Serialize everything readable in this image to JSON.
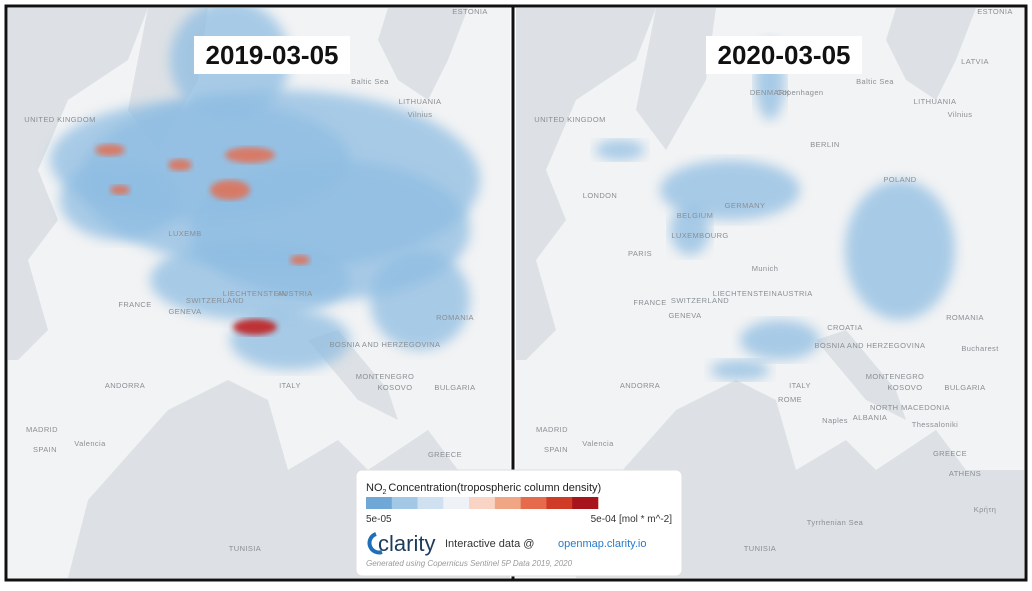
{
  "panels": [
    {
      "date": "2019-03-05",
      "labels": [
        "ESTONIA",
        "UNITED KINGDOM",
        "Baltic Sea",
        "LITHUANIA",
        "Vilnius",
        "FRANCE",
        "LIECHTENSTEIN",
        "SWITZERLAND",
        "AUSTRIA",
        "GENEVA",
        "ROMANIA",
        "BOSNIA AND HERZEGOVINA",
        "ANDORRA",
        "MONTENEGRO",
        "KOSOVO",
        "BULGARIA",
        "ITALY",
        "MADRID",
        "SPAIN",
        "Valencia",
        "GREECE",
        "TUNISIA",
        "LUXEMB"
      ]
    },
    {
      "date": "2020-03-05",
      "labels": [
        "ESTONIA",
        "LATVIA",
        "DENMARK",
        "Copenhagen",
        "Baltic Sea",
        "LITHUANIA",
        "Vilnius",
        "UNITED KINGDOM",
        "LONDON",
        "BERLIN",
        "POLAND",
        "GERMANY",
        "BELGIUM",
        "PARIS",
        "LUXEMBOURG",
        "Munich",
        "FRANCE",
        "LIECHTENSTEIN",
        "SWITZERLAND",
        "AUSTRIA",
        "GENEVA",
        "ROMANIA",
        "CROATIA",
        "BOSNIA AND HERZEGOVINA",
        "Bucharest",
        "ANDORRA",
        "MONTENEGRO",
        "KOSOVO",
        "BULGARIA",
        "NORTH MACEDONIA",
        "ITALY",
        "ROME",
        "ALBANIA",
        "Thessaloniki",
        "MADRID",
        "SPAIN",
        "Valencia",
        "Naples",
        "GREECE",
        "ATHENS",
        "Tyrrhenian Sea",
        "TUNISIA",
        "Κρήτη"
      ]
    }
  ],
  "legend": {
    "title_main": "NO",
    "title_sub": "2",
    "title_rest": "Concentration(tropospheric column density)",
    "min_label": "5e-05",
    "max_label": "5e-04 [mol * m^-2]",
    "colors": [
      "#6fa8d6",
      "#a3c8e6",
      "#cfe1f0",
      "#eef2f6",
      "#f9d3c4",
      "#f0a585",
      "#e66b4c",
      "#cf3b27",
      "#a8141c"
    ],
    "brand": "clarity",
    "interactive": "Interactive data @",
    "url": "openmap.clarity.io",
    "credit": "Generated using Copernicus Sentinel 5P Data 2019, 2020"
  }
}
